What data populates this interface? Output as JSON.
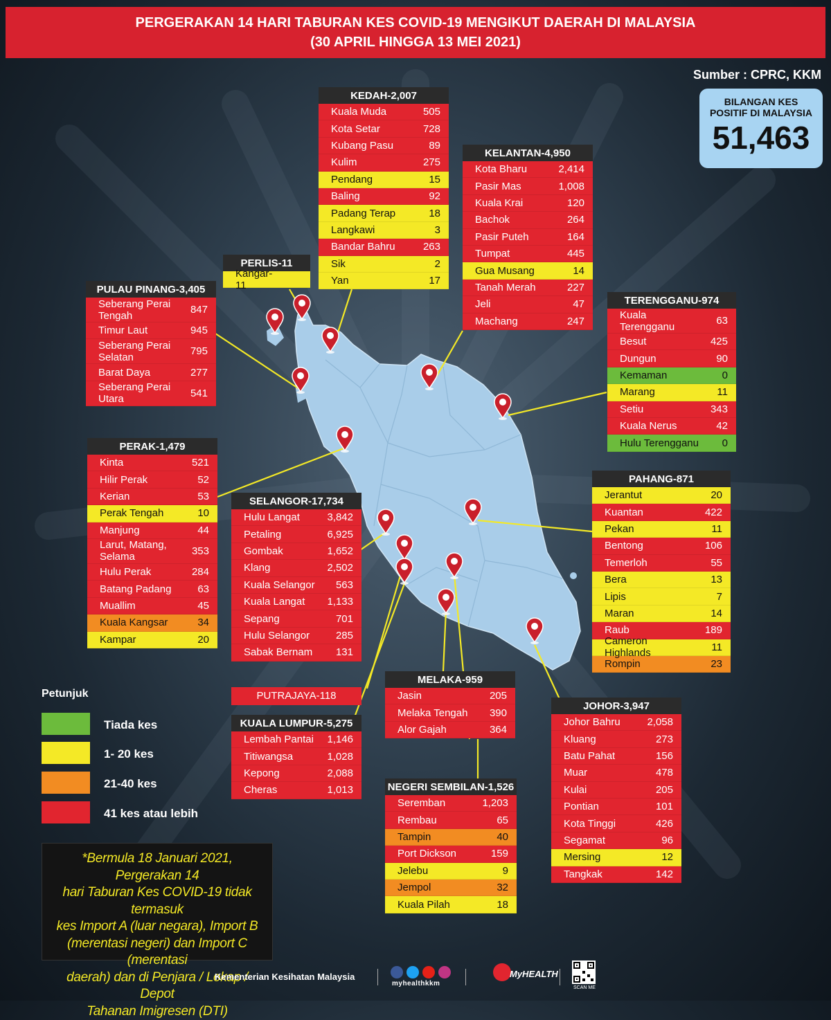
{
  "header": {
    "title_line1": "PERGERAKAN 14 HARI TABURAN KES COVID-19 MENGIKUT DAERAH DI MALAYSIA",
    "title_line2": "(30 APRIL HINGGA 13 MEI 2021)"
  },
  "source": "Sumber : CPRC, KKM",
  "total": {
    "label_line1": "BILANGAN KES",
    "label_line2": "POSITIF DI MALAYSIA",
    "value": "51,463"
  },
  "states": {
    "kedah": {
      "title": "KEDAH-2,007",
      "rows": [
        {
          "name": "Kuala Muda",
          "value": "505",
          "level": "r"
        },
        {
          "name": "Kota Setar",
          "value": "728",
          "level": "r"
        },
        {
          "name": "Kubang Pasu",
          "value": "89",
          "level": "r"
        },
        {
          "name": "Kulim",
          "value": "275",
          "level": "r"
        },
        {
          "name": "Pendang",
          "value": "15",
          "level": "y"
        },
        {
          "name": "Baling",
          "value": "92",
          "level": "r"
        },
        {
          "name": "Padang Terap",
          "value": "18",
          "level": "y"
        },
        {
          "name": "Langkawi",
          "value": "3",
          "level": "y"
        },
        {
          "name": "Bandar Bahru",
          "value": "263",
          "level": "r"
        },
        {
          "name": "Sik",
          "value": "2",
          "level": "y"
        },
        {
          "name": "Yan",
          "value": "17",
          "level": "y"
        }
      ]
    },
    "kelantan": {
      "title": "KELANTAN-4,950",
      "rows": [
        {
          "name": "Kota Bharu",
          "value": "2,414",
          "level": "r"
        },
        {
          "name": "Pasir Mas",
          "value": "1,008",
          "level": "r"
        },
        {
          "name": "Kuala Krai",
          "value": "120",
          "level": "r"
        },
        {
          "name": "Bachok",
          "value": "264",
          "level": "r"
        },
        {
          "name": "Pasir Puteh",
          "value": "164",
          "level": "r"
        },
        {
          "name": "Tumpat",
          "value": "445",
          "level": "r"
        },
        {
          "name": "Gua Musang",
          "value": "14",
          "level": "y"
        },
        {
          "name": "Tanah Merah",
          "value": "227",
          "level": "r"
        },
        {
          "name": "Jeli",
          "value": "47",
          "level": "r"
        },
        {
          "name": "Machang",
          "value": "247",
          "level": "r"
        }
      ]
    },
    "perlis": {
      "title": "PERLIS-11",
      "rows": [
        {
          "name": "Kangar-11",
          "value": "",
          "level": "y"
        }
      ]
    },
    "pulau_pinang": {
      "title": "PULAU PINANG-3,405",
      "rows": [
        {
          "name": "Seberang Perai Tengah",
          "value": "847",
          "level": "r",
          "tall": true
        },
        {
          "name": "Timur Laut",
          "value": "945",
          "level": "r"
        },
        {
          "name": "Seberang Perai Selatan",
          "value": "795",
          "level": "r",
          "tall": true
        },
        {
          "name": "Barat Daya",
          "value": "277",
          "level": "r"
        },
        {
          "name": "Seberang Perai Utara",
          "value": "541",
          "level": "r",
          "tall": true
        }
      ]
    },
    "terengganu": {
      "title": "TERENGGANU-974",
      "rows": [
        {
          "name": "Kuala Terengganu",
          "value": "63",
          "level": "r",
          "tall": true
        },
        {
          "name": "Besut",
          "value": "425",
          "level": "r"
        },
        {
          "name": "Dungun",
          "value": "90",
          "level": "r"
        },
        {
          "name": "Kemaman",
          "value": "0",
          "level": "g"
        },
        {
          "name": "Marang",
          "value": "11",
          "level": "y"
        },
        {
          "name": "Setiu",
          "value": "343",
          "level": "r"
        },
        {
          "name": "Kuala Nerus",
          "value": "42",
          "level": "r"
        },
        {
          "name": "Hulu Terengganu",
          "value": "0",
          "level": "g"
        }
      ]
    },
    "perak": {
      "title": "PERAK-1,479",
      "rows": [
        {
          "name": "Kinta",
          "value": "521",
          "level": "r"
        },
        {
          "name": "Hilir Perak",
          "value": "52",
          "level": "r"
        },
        {
          "name": "Kerian",
          "value": "53",
          "level": "r"
        },
        {
          "name": "Perak Tengah",
          "value": "10",
          "level": "y"
        },
        {
          "name": "Manjung",
          "value": "44",
          "level": "r"
        },
        {
          "name": "Larut, Matang, Selama",
          "value": "353",
          "level": "r",
          "tall": true
        },
        {
          "name": "Hulu Perak",
          "value": "284",
          "level": "r"
        },
        {
          "name": "Batang Padang",
          "value": "63",
          "level": "r"
        },
        {
          "name": "Muallim",
          "value": "45",
          "level": "r"
        },
        {
          "name": "Kuala Kangsar",
          "value": "34",
          "level": "o"
        },
        {
          "name": "Kampar",
          "value": "20",
          "level": "y"
        }
      ]
    },
    "selangor": {
      "title": "SELANGOR-17,734",
      "rows": [
        {
          "name": "Hulu Langat",
          "value": "3,842",
          "level": "r"
        },
        {
          "name": "Petaling",
          "value": "6,925",
          "level": "r"
        },
        {
          "name": "Gombak",
          "value": "1,652",
          "level": "r"
        },
        {
          "name": "Klang",
          "value": "2,502",
          "level": "r"
        },
        {
          "name": "Kuala Selangor",
          "value": "563",
          "level": "r"
        },
        {
          "name": "Kuala Langat",
          "value": "1,133",
          "level": "r"
        },
        {
          "name": "Sepang",
          "value": "701",
          "level": "r"
        },
        {
          "name": "Hulu Selangor",
          "value": "285",
          "level": "r"
        },
        {
          "name": "Sabak Bernam",
          "value": "131",
          "level": "r"
        }
      ]
    },
    "pahang": {
      "title": "PAHANG-871",
      "rows": [
        {
          "name": "Jerantut",
          "value": "20",
          "level": "y"
        },
        {
          "name": "Kuantan",
          "value": "422",
          "level": "r"
        },
        {
          "name": "Pekan",
          "value": "11",
          "level": "y"
        },
        {
          "name": "Bentong",
          "value": "106",
          "level": "r"
        },
        {
          "name": "Temerloh",
          "value": "55",
          "level": "r"
        },
        {
          "name": "Bera",
          "value": "13",
          "level": "y"
        },
        {
          "name": "Lipis",
          "value": "7",
          "level": "y"
        },
        {
          "name": "Maran",
          "value": "14",
          "level": "y"
        },
        {
          "name": "Raub",
          "value": "189",
          "level": "r"
        },
        {
          "name": "Cameron Highlands",
          "value": "11",
          "level": "y"
        },
        {
          "name": "Rompin",
          "value": "23",
          "level": "o"
        }
      ]
    },
    "putrajaya": {
      "title": "PUTRAJAYA-118"
    },
    "kuala_lumpur": {
      "title": "KUALA LUMPUR-5,275",
      "rows": [
        {
          "name": "Lembah Pantai",
          "value": "1,146",
          "level": "r"
        },
        {
          "name": "Titiwangsa",
          "value": "1,028",
          "level": "r"
        },
        {
          "name": "Kepong",
          "value": "2,088",
          "level": "r"
        },
        {
          "name": "Cheras",
          "value": "1,013",
          "level": "r"
        }
      ]
    },
    "melaka": {
      "title": "MELAKA-959",
      "rows": [
        {
          "name": "Jasin",
          "value": "205",
          "level": "r"
        },
        {
          "name": "Melaka Tengah",
          "value": "390",
          "level": "r"
        },
        {
          "name": "Alor Gajah",
          "value": "364",
          "level": "r"
        }
      ]
    },
    "negeri_sembilan": {
      "title": "NEGERI SEMBILAN-1,526",
      "rows": [
        {
          "name": "Seremban",
          "value": "1,203",
          "level": "r"
        },
        {
          "name": "Rembau",
          "value": "65",
          "level": "r"
        },
        {
          "name": "Tampin",
          "value": "40",
          "level": "o"
        },
        {
          "name": "Port Dickson",
          "value": "159",
          "level": "r"
        },
        {
          "name": "Jelebu",
          "value": "9",
          "level": "y"
        },
        {
          "name": "Jempol",
          "value": "32",
          "level": "o"
        },
        {
          "name": "Kuala Pilah",
          "value": "18",
          "level": "y"
        }
      ]
    },
    "johor": {
      "title": "JOHOR-3,947",
      "rows": [
        {
          "name": "Johor Bahru",
          "value": "2,058",
          "level": "r"
        },
        {
          "name": "Kluang",
          "value": "273",
          "level": "r"
        },
        {
          "name": "Batu Pahat",
          "value": "156",
          "level": "r"
        },
        {
          "name": "Muar",
          "value": "478",
          "level": "r"
        },
        {
          "name": "Kulai",
          "value": "205",
          "level": "r"
        },
        {
          "name": "Pontian",
          "value": "101",
          "level": "r"
        },
        {
          "name": "Kota Tinggi",
          "value": "426",
          "level": "r"
        },
        {
          "name": "Segamat",
          "value": "96",
          "level": "r"
        },
        {
          "name": "Mersing",
          "value": "12",
          "level": "y"
        },
        {
          "name": "Tangkak",
          "value": "142",
          "level": "r"
        }
      ]
    }
  },
  "legend": {
    "title": "Petunjuk",
    "items": [
      {
        "label": "Tiada kes",
        "color": "#6cbb3c"
      },
      {
        "label": "1- 20 kes",
        "color": "#f4e926"
      },
      {
        "label": "21-40 kes",
        "color": "#f28c22"
      },
      {
        "label": "41 kes atau lebih",
        "color": "#e1252f"
      }
    ]
  },
  "note": {
    "lines": [
      "*Bermula 18 Januari 2021, Pergerakan 14",
      "hari Taburan Kes COVID-19 tidak termasuk",
      "kes Import A (luar negara), Import B",
      "(merentasi negeri) dan Import C (merentasi",
      "daerah) dan di Penjara / Lokap / Depot",
      "Tahanan Imigresen (DTI)"
    ]
  },
  "footer": {
    "ministry": "Kementerian Kesihatan Malaysia",
    "handle": "myhealthkkm",
    "brand": "MyHEALTH",
    "scan": "SCAN ME"
  },
  "colors": {
    "red": "#e1252f",
    "yellow": "#f4e926",
    "orange": "#f28c22",
    "green": "#6cbb3c",
    "map": "#a9cde9",
    "header": "#d7222f"
  }
}
